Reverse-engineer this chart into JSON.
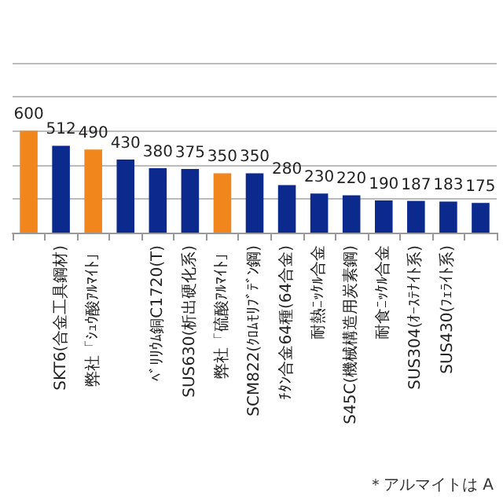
{
  "chart_data": {
    "type": "bar",
    "categories": [
      null,
      "SKT6(合金工具鋼材)",
      "弊社「ｼｭｳ酸ｱﾙﾏｲﾄ」",
      null,
      "ﾍﾞﾘﾘｳﾑ銅C1720(T)",
      "SUS630(析出硬化系)",
      "弊社「硫酸ｱﾙﾏｲﾄ」",
      "SCM822(ｸﾛﾑﾓﾘﾌﾞﾃﾞﾝ鋼)",
      "ﾁﾀﾝ合金64種(64合金)",
      "耐熱ﾆｯｹﾙ合金",
      "S45C(機械構造用炭素鋼)",
      "耐食ﾆｯｹﾙ合金",
      "SUS304(ｵｰｽﾃﾅｲﾄ系)",
      "SUS430(ﾌｪﾗｲﾄ系)",
      null
    ],
    "values": [
      600,
      512,
      490,
      430,
      380,
      375,
      350,
      350,
      280,
      230,
      220,
      190,
      187,
      183,
      175
    ],
    "value_labels": [
      "600",
      "512",
      "490",
      "430",
      "380",
      "375",
      "350",
      "350",
      "280",
      "230",
      "220",
      "190",
      "187",
      "183",
      "175"
    ],
    "colors": [
      "#f0861c",
      "#0c2a8e",
      "#f0861c",
      "#0c2a8e",
      "#0c2a8e",
      "#0c2a8e",
      "#f0861c",
      "#0c2a8e",
      "#0c2a8e",
      "#0c2a8e",
      "#0c2a8e",
      "#0c2a8e",
      "#0c2a8e",
      "#0c2a8e",
      "#0c2a8e"
    ],
    "ylim": [
      0,
      1000
    ],
    "yticks": [
      {
        "value": 0,
        "label": null
      },
      {
        "value": 200,
        "label": null
      },
      {
        "value": 400,
        "label": null
      },
      {
        "value": 600,
        "label": null
      },
      {
        "value": 800,
        "label": null
      },
      {
        "value": 1000,
        "label": null
      }
    ],
    "grid": "y",
    "tick_labels": "x",
    "annotations": [
      "＊アルマイトは A"
    ]
  }
}
